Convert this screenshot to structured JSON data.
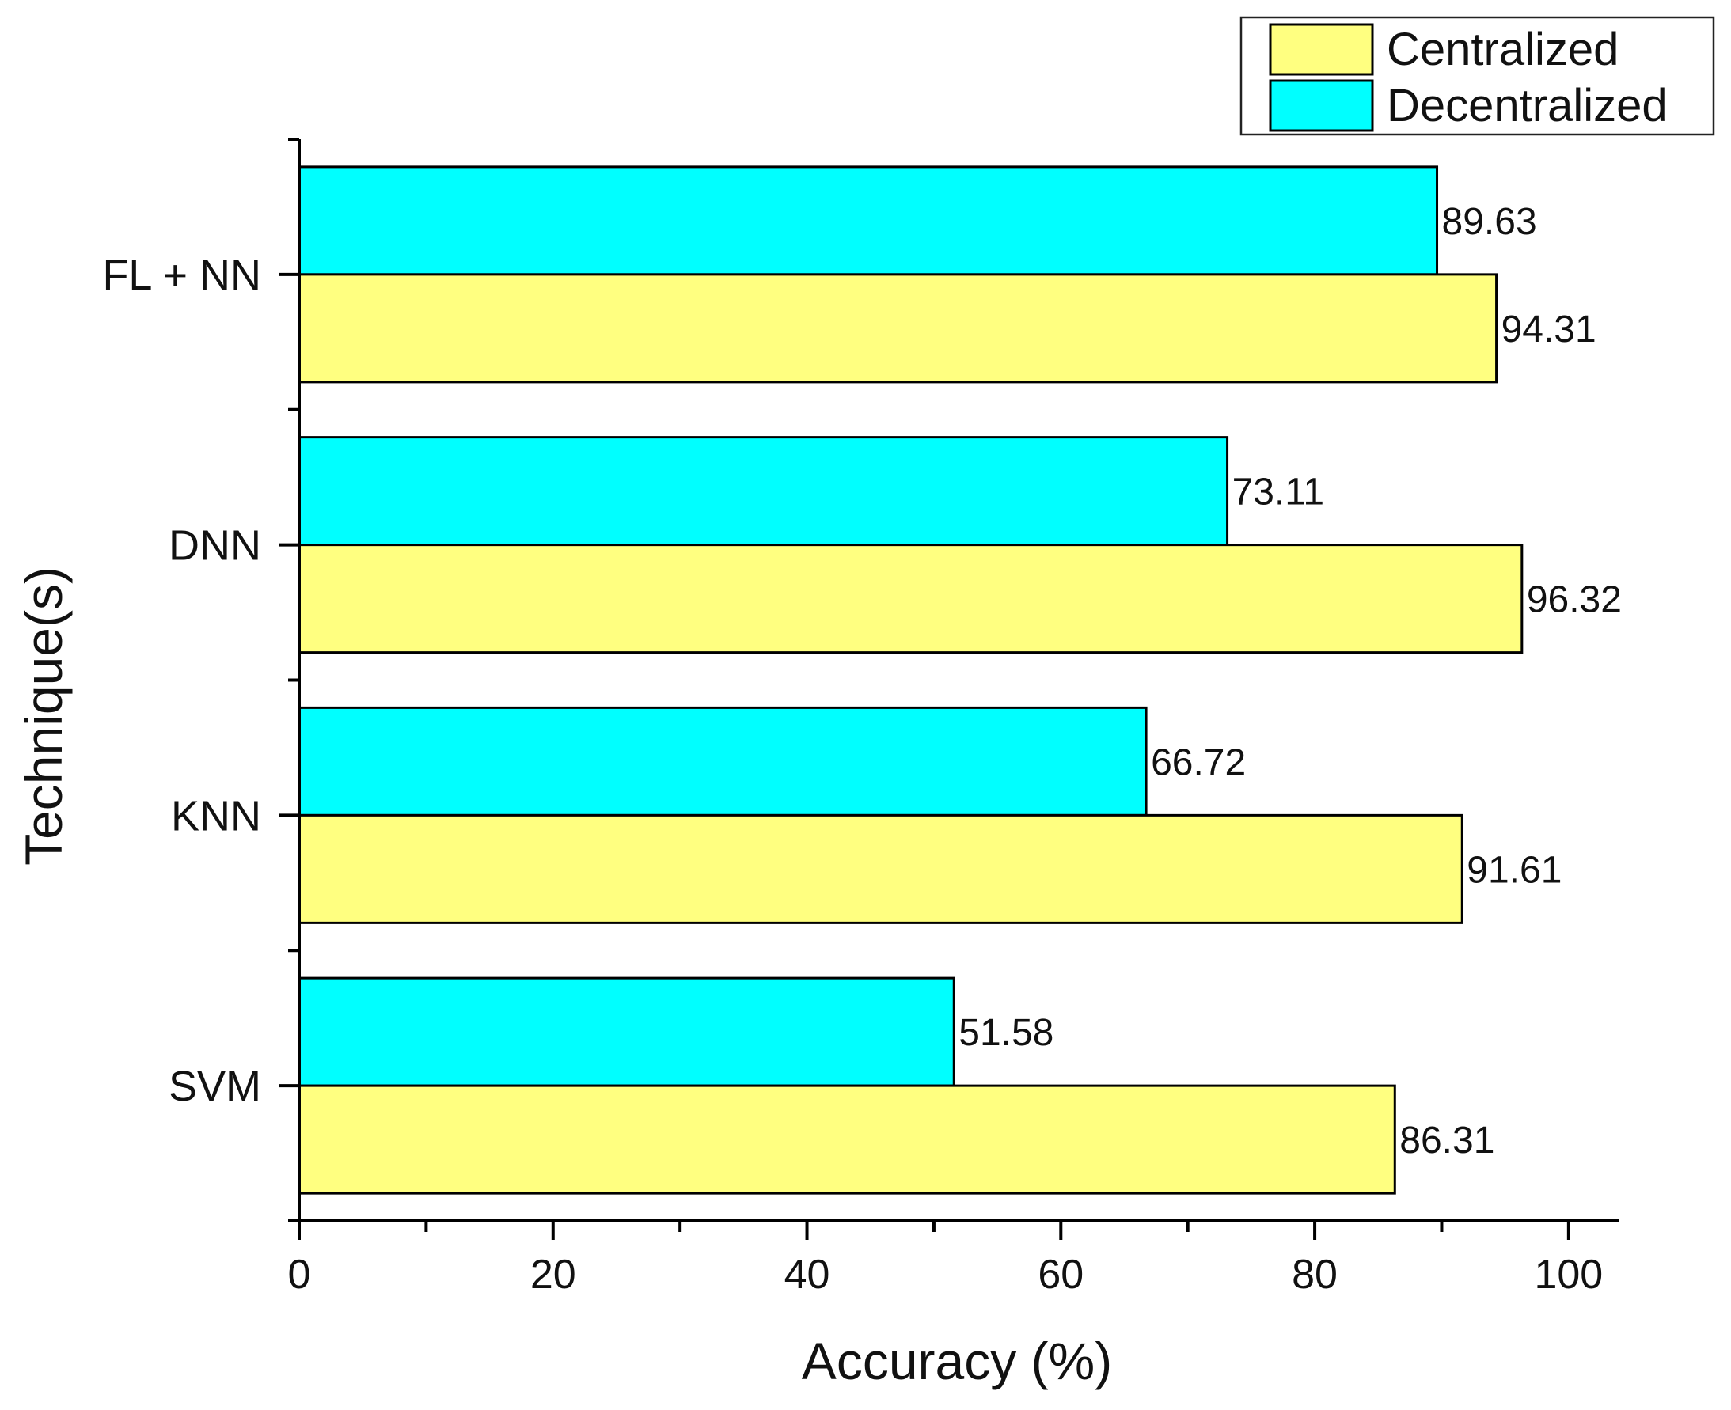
{
  "chart_data": {
    "type": "bar",
    "orientation": "horizontal",
    "title": "",
    "xlabel": "Accuracy (%)",
    "ylabel": "Technique(s)",
    "xlim": [
      0,
      104
    ],
    "xticks": [
      0,
      20,
      40,
      60,
      80,
      100
    ],
    "categories": [
      "FL + NN",
      "DNN",
      "KNN",
      "SVM"
    ],
    "series": [
      {
        "name": "Centralized",
        "color": "#FFFF80",
        "values": [
          94.31,
          96.32,
          91.61,
          86.31
        ],
        "labels": [
          "94.31",
          "96.32",
          "91.61",
          "86.31"
        ]
      },
      {
        "name": "Decentralized",
        "color": "#00FFFF",
        "values": [
          89.63,
          73.11,
          66.72,
          51.58
        ],
        "labels": [
          "89.63",
          "73.11",
          "66.72",
          "51.58"
        ]
      }
    ],
    "legend": {
      "position": "top-right",
      "entries": [
        "Centralized",
        "Decentralized"
      ]
    },
    "grid": false
  }
}
